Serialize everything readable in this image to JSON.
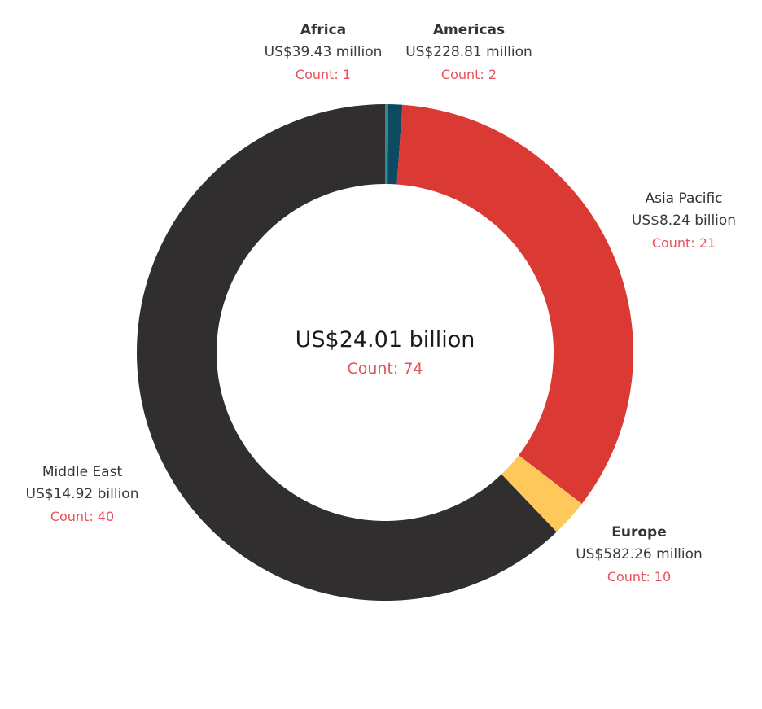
{
  "chart_data": {
    "type": "pie",
    "variant": "donut",
    "total_label": "US$24.01 billion",
    "total_count_label": "Count: 74",
    "count_color": "#e8505b",
    "series": [
      {
        "name": "Africa",
        "value": 0.03943,
        "value_label": "US$39.43 million",
        "count_label": "Count: 1",
        "color": "#2a8c8c"
      },
      {
        "name": "Americas",
        "value": 0.22881,
        "value_label": "US$228.81 million",
        "count_label": "Count: 2",
        "color": "#0b4a61"
      },
      {
        "name": "Asia Pacific",
        "value": 8.24,
        "value_label": "US$8.24 billion",
        "count_label": "Count: 21",
        "color": "#db3a34"
      },
      {
        "name": "Europe",
        "value": 0.58226,
        "value_label": "US$582.26 million",
        "count_label": "Count: 10",
        "color": "#fec85a"
      },
      {
        "name": "Middle East",
        "value": 14.92,
        "value_label": "US$14.92 billion",
        "count_label": "Count: 40",
        "color": "#302e2f"
      }
    ],
    "value_unit": "US$ billion"
  }
}
